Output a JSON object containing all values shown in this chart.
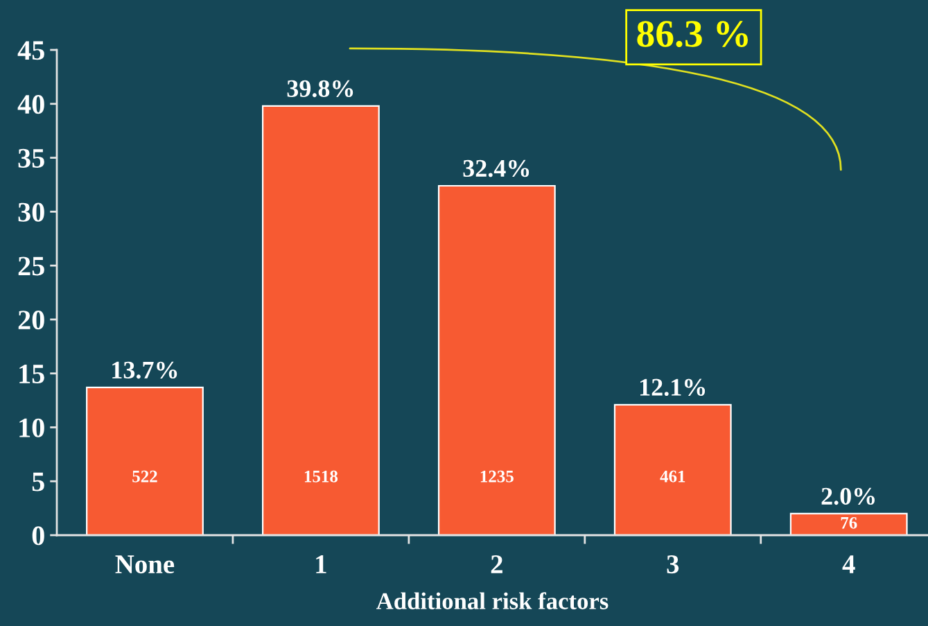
{
  "chart_data": {
    "type": "bar",
    "categories": [
      "None",
      "1",
      "2",
      "3",
      "4"
    ],
    "values": [
      13.7,
      39.8,
      32.4,
      12.1,
      2.0
    ],
    "value_labels": [
      "13.7%",
      "39.8%",
      "32.4%",
      "12.1%",
      "2.0%"
    ],
    "color": "#f75a32",
    "xlabel": "Additional risk factors",
    "ylim": [
      0,
      45
    ],
    "yticks": [
      0,
      5,
      10,
      15,
      20,
      25,
      30,
      35,
      40,
      45
    ],
    "annotations": [
      "86.3 %",
      "522",
      "1518",
      "1235",
      "461",
      "76"
    ]
  }
}
